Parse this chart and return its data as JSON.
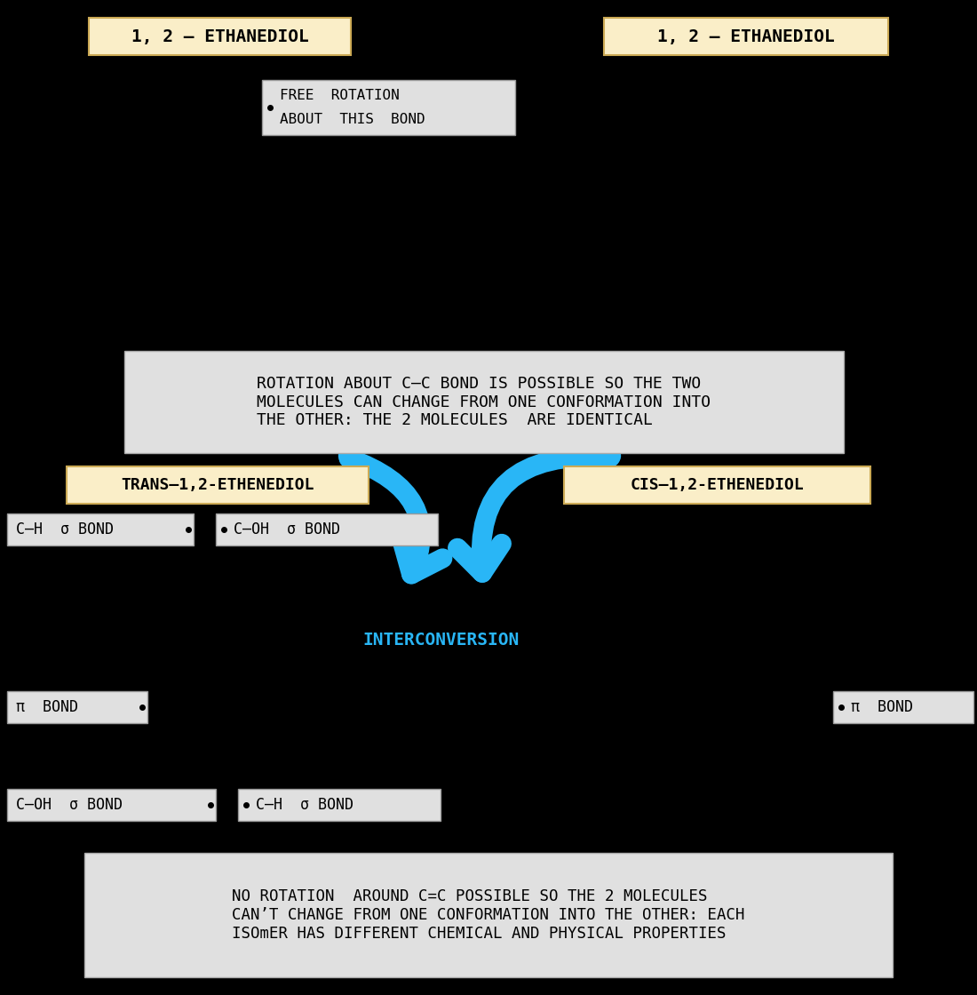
{
  "bg_color": "#000000",
  "white_box_bg": "#e0e0e0",
  "yellow_box_bg": "#faeec8",
  "arrow_color": "#29b6f6",
  "label_ethanediol_left": "1, 2 – ETHANEDIOL",
  "label_ethanediol_right": "1, 2 – ETHANEDIOL",
  "label_free_rotation_1": "FREE  ROTATION",
  "label_free_rotation_2": "ABOUT  THIS  BOND",
  "label_rotation_box": "ROTATION ABOUT C–C BOND IS POSSIBLE SO THE TWO\nMOLECULES CAN CHANGE FROM ONE CONFORMATION INTO\nTHE OTHER: THE 2 MOLECULES  ARE IDENTICAL",
  "label_trans": "TRANS–1,2-ETHENEDIOL",
  "label_cis": "CIS–1,2-ETHENEDIOL",
  "label_ch_sigma_left": "C–H  σ BOND",
  "label_coh_sigma_left": "C–OH  σ BOND",
  "label_pi_bond_left": "π  BOND",
  "label_pi_bond_right": "π  BOND",
  "label_coh_sigma_bottom": "C–OH  σ BOND",
  "label_ch_sigma_bottom": "C–H  σ BOND",
  "label_interconversion": "INTERCONVERSION",
  "label_no_rotation_box": "NO ROTATION  AROUND C=C POSSIBLE SO THE 2 MOLECULES\nCAN’T CHANGE FROM ONE CONFORMATION INTO THE OTHER: EACH\nISOmER HAS DIFFERENT CHEMICAL AND PHYSICAL PROPERTIES"
}
